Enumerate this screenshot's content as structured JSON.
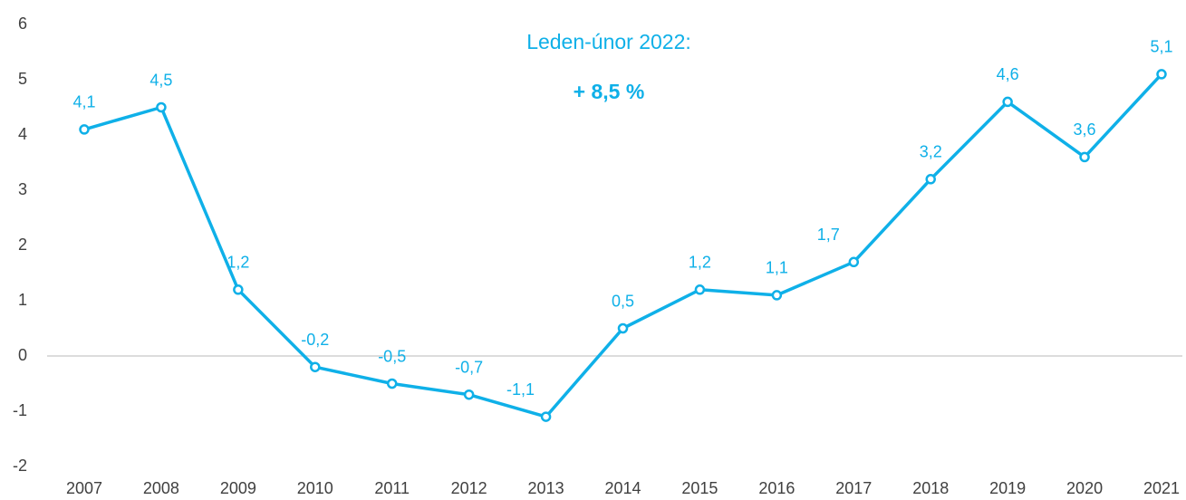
{
  "chart_data": {
    "type": "line",
    "annotations": [
      "Leden-únor 2022:",
      "+ 8,5 %"
    ],
    "categories": [
      "2007",
      "2008",
      "2009",
      "2010",
      "2011",
      "2012",
      "2013",
      "2014",
      "2015",
      "2016",
      "2017",
      "2018",
      "2019",
      "2020",
      "2021"
    ],
    "series": [
      {
        "color": "#0fb0e8",
        "values": [
          4.1,
          4.5,
          1.2,
          -0.2,
          -0.5,
          -0.7,
          -1.1,
          0.5,
          1.2,
          1.1,
          1.7,
          3.2,
          4.6,
          3.6,
          5.1
        ],
        "value_labels": [
          "4,1",
          "4,5",
          "1,2",
          "-0,2",
          "-0,5",
          "-0,7",
          "-1,1",
          "0,5",
          "1,2",
          "1,1",
          "1,7",
          "3,2",
          "4,6",
          "3,6",
          "5,1"
        ]
      }
    ],
    "ylim": [
      -2,
      6
    ],
    "yticks": [
      -2,
      -1,
      0,
      1,
      2,
      3,
      4,
      5,
      6
    ],
    "grid": false
  }
}
